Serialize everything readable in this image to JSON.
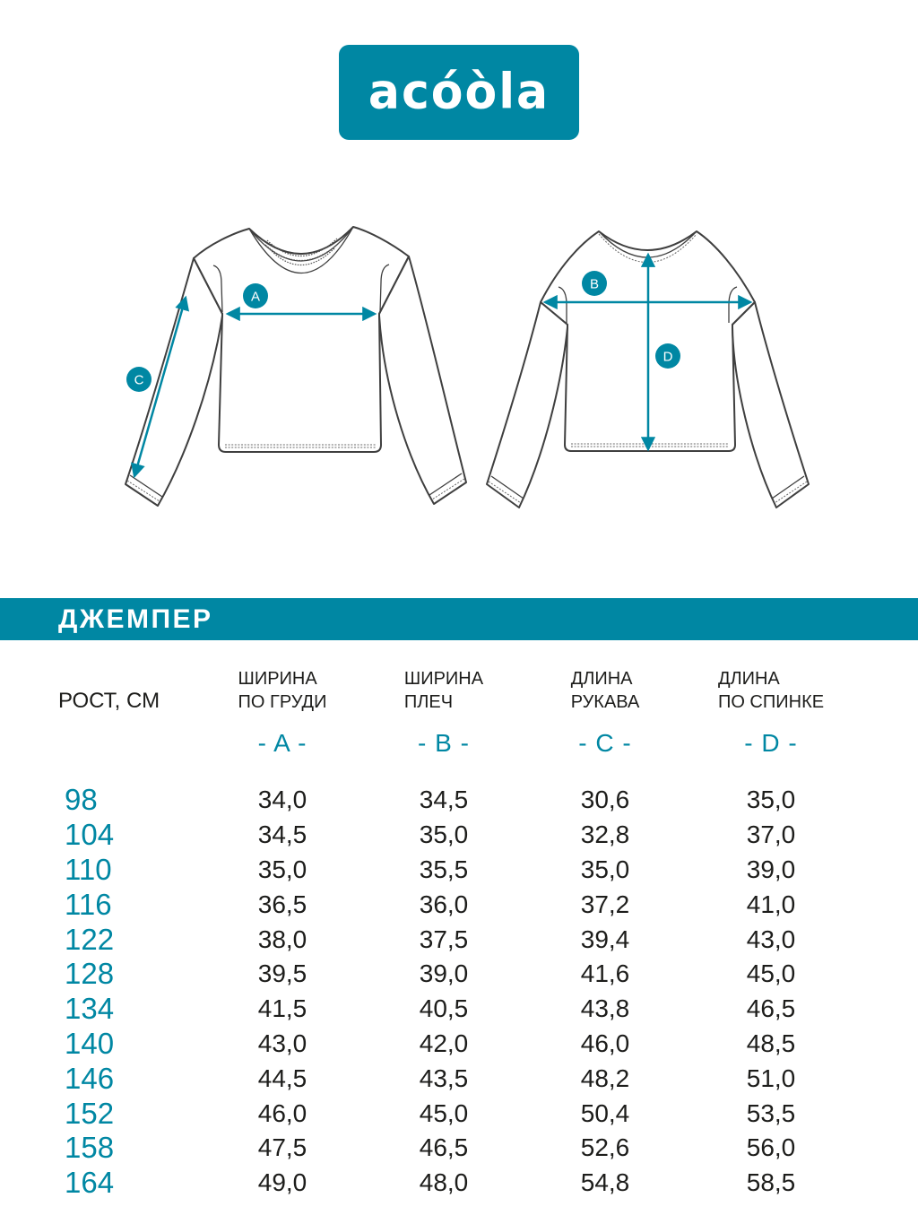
{
  "colors": {
    "accent_teal": "#0087a3",
    "ink": "#1d1d1b",
    "outline_gray": "#3f3f3f"
  },
  "logo": {
    "text": "acóòla"
  },
  "size_guide": {
    "front_view": {
      "markers": [
        {
          "letter": "A"
        },
        {
          "letter": "C"
        }
      ]
    },
    "back_view": {
      "markers": [
        {
          "letter": "B"
        },
        {
          "letter": "D"
        }
      ]
    }
  },
  "banner": {
    "title": "ДЖЕМПЕР"
  },
  "table": {
    "height_header": "РОСТ, СМ",
    "columns": [
      {
        "line1": "ШИРИНА",
        "line2": "ПО ГРУДИ",
        "letter": "- A -"
      },
      {
        "line1": "ШИРИНА",
        "line2": "ПЛЕЧ",
        "letter": "- B -"
      },
      {
        "line1": "ДЛИНА",
        "line2": "РУКАВА",
        "letter": "- C -"
      },
      {
        "line1": "ДЛИНА",
        "line2": "ПО СПИНКЕ",
        "letter": "- D -"
      }
    ],
    "rows": [
      {
        "height": "98",
        "a": "34,0",
        "b": "34,5",
        "c": "30,6",
        "d": "35,0"
      },
      {
        "height": "104",
        "a": "34,5",
        "b": "35,0",
        "c": "32,8",
        "d": "37,0"
      },
      {
        "height": "110",
        "a": "35,0",
        "b": "35,5",
        "c": "35,0",
        "d": "39,0"
      },
      {
        "height": "116",
        "a": "36,5",
        "b": "36,0",
        "c": "37,2",
        "d": "41,0"
      },
      {
        "height": "122",
        "a": "38,0",
        "b": "37,5",
        "c": "39,4",
        "d": "43,0"
      },
      {
        "height": "128",
        "a": "39,5",
        "b": "39,0",
        "c": "41,6",
        "d": "45,0"
      },
      {
        "height": "134",
        "a": "41,5",
        "b": "40,5",
        "c": "43,8",
        "d": "46,5"
      },
      {
        "height": "140",
        "a": "43,0",
        "b": "42,0",
        "c": "46,0",
        "d": "48,5"
      },
      {
        "height": "146",
        "a": "44,5",
        "b": "43,5",
        "c": "48,2",
        "d": "51,0"
      },
      {
        "height": "152",
        "a": "46,0",
        "b": "45,0",
        "c": "50,4",
        "d": "53,5"
      },
      {
        "height": "158",
        "a": "47,5",
        "b": "46,5",
        "c": "52,6",
        "d": "56,0"
      },
      {
        "height": "164",
        "a": "49,0",
        "b": "48,0",
        "c": "54,8",
        "d": "58,5"
      }
    ]
  }
}
